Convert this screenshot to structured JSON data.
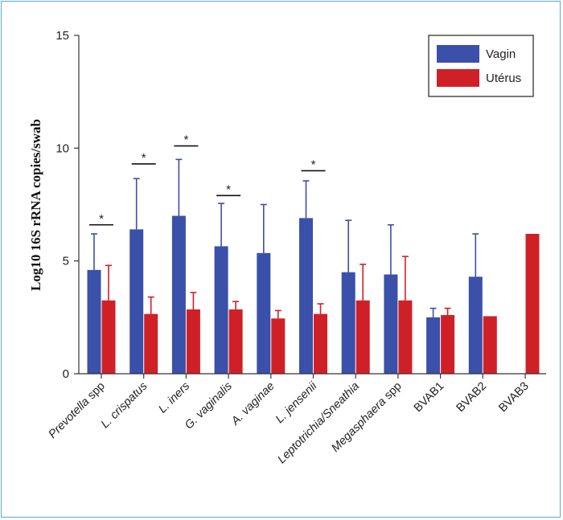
{
  "chart_data": {
    "type": "bar",
    "title": "",
    "xlabel": "",
    "ylabel": "Log10 16S rRNA copies/swab",
    "ylim": [
      0,
      15
    ],
    "yticks": [
      0,
      5,
      10,
      15
    ],
    "grid": false,
    "legend_position": "top-right",
    "categories": [
      {
        "parts": [
          {
            "text": "Prevotella",
            "italic": true
          },
          {
            "text": " spp",
            "italic": false
          }
        ]
      },
      {
        "parts": [
          {
            "text": "L. crispatus",
            "italic": true
          }
        ]
      },
      {
        "parts": [
          {
            "text": "L. iners",
            "italic": true
          }
        ]
      },
      {
        "parts": [
          {
            "text": "G. vaginalis",
            "italic": true
          }
        ]
      },
      {
        "parts": [
          {
            "text": "A. vaginae",
            "italic": true
          }
        ]
      },
      {
        "parts": [
          {
            "text": "L. jensenii",
            "italic": true
          }
        ]
      },
      {
        "parts": [
          {
            "text": "Leptotrichia/Sneathia",
            "italic": true
          }
        ]
      },
      {
        "parts": [
          {
            "text": "Megasphaera",
            "italic": true
          },
          {
            "text": " spp",
            "italic": false
          }
        ]
      },
      {
        "parts": [
          {
            "text": "BVAB1",
            "italic": false
          }
        ]
      },
      {
        "parts": [
          {
            "text": "BVAB2",
            "italic": false
          }
        ]
      },
      {
        "parts": [
          {
            "text": "BVAB3",
            "italic": false
          }
        ]
      }
    ],
    "series": [
      {
        "name": "Vagin",
        "color": "#3b50a8",
        "values": [
          4.6,
          6.4,
          7.0,
          5.65,
          5.35,
          6.9,
          4.5,
          4.4,
          2.5,
          4.3,
          null
        ],
        "error_upper": [
          6.2,
          8.65,
          9.5,
          7.55,
          7.5,
          8.55,
          6.8,
          6.6,
          2.9,
          6.2,
          null
        ]
      },
      {
        "name": "Utérus",
        "color": "#d02027",
        "values": [
          3.25,
          2.65,
          2.85,
          2.85,
          2.45,
          2.65,
          3.25,
          3.25,
          2.6,
          2.55,
          6.2
        ],
        "error_upper": [
          4.8,
          3.4,
          3.6,
          3.2,
          2.8,
          3.1,
          4.85,
          5.2,
          2.9,
          null,
          null
        ]
      }
    ],
    "significance": [
      {
        "category": 0,
        "y": 6.6,
        "label": "*"
      },
      {
        "category": 1,
        "y": 9.3,
        "label": "*"
      },
      {
        "category": 2,
        "y": 10.1,
        "label": "*"
      },
      {
        "category": 3,
        "y": 7.9,
        "label": "*"
      },
      {
        "category": 5,
        "y": 9.0,
        "label": "*"
      }
    ]
  }
}
